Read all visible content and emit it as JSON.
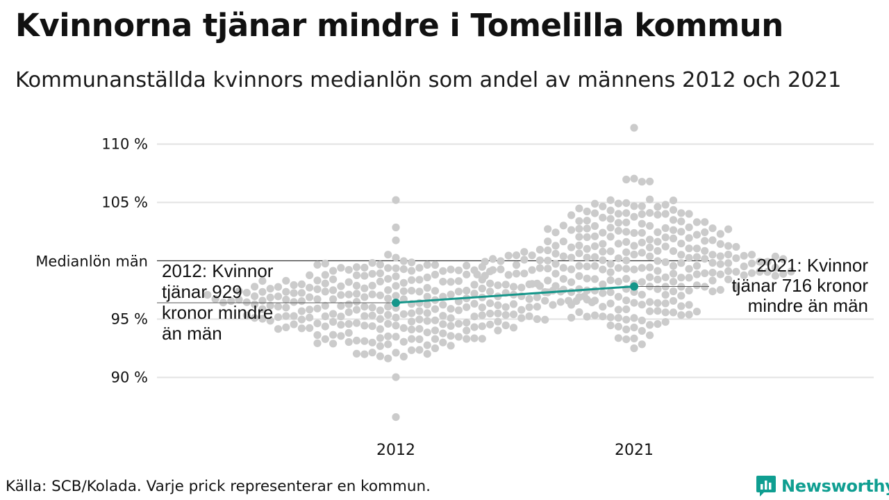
{
  "header": {
    "title": "Kvinnorna tjänar mindre i Tomelilla kommun",
    "subtitle": "Kommunanställda kvinnors medianlön som andel av männens 2012 och 2021"
  },
  "footer": {
    "source": "Källa: SCB/Kolada. Varje prick representerar en kommun.",
    "brand": "Newsworthy"
  },
  "colors": {
    "highlight": "#15968a",
    "dots": "#cbcbcb",
    "grid": "#e2e2e2",
    "reference": "#333333",
    "brand": "#0f9e91"
  },
  "chart_data": {
    "type": "scatter",
    "subtype": "beeswarm",
    "x_categories": [
      "2012",
      "2021"
    ],
    "ylim": [
      86,
      111.5
    ],
    "yticks": [
      {
        "value": 90,
        "label": "90 %"
      },
      {
        "value": 95,
        "label": "95 %"
      },
      {
        "value": 105,
        "label": "105 %"
      },
      {
        "value": 110,
        "label": "110 %"
      }
    ],
    "reference_line": {
      "value": 100,
      "label": "Medianlön män"
    },
    "grid": true,
    "highlight": {
      "series_color": "#15968a",
      "points": [
        {
          "x": "2012",
          "y": 96.4,
          "annotation": [
            "2012: Kvinnor",
            "tjänar 929",
            "kronor mindre",
            "än män"
          ],
          "annotation_side": "left"
        },
        {
          "x": "2021",
          "y": 97.8,
          "annotation": [
            "2021: Kvinnor",
            "tjänar 716 kronor",
            "mindre än män"
          ],
          "annotation_side": "right"
        }
      ]
    },
    "distribution": [
      {
        "year": "2012",
        "count": 290,
        "median": 96.2,
        "min": 86.6,
        "max": 105.2
      },
      {
        "year": "2021",
        "count": 290,
        "median": 99.8,
        "min": 92.5,
        "max": 111.4
      }
    ]
  }
}
